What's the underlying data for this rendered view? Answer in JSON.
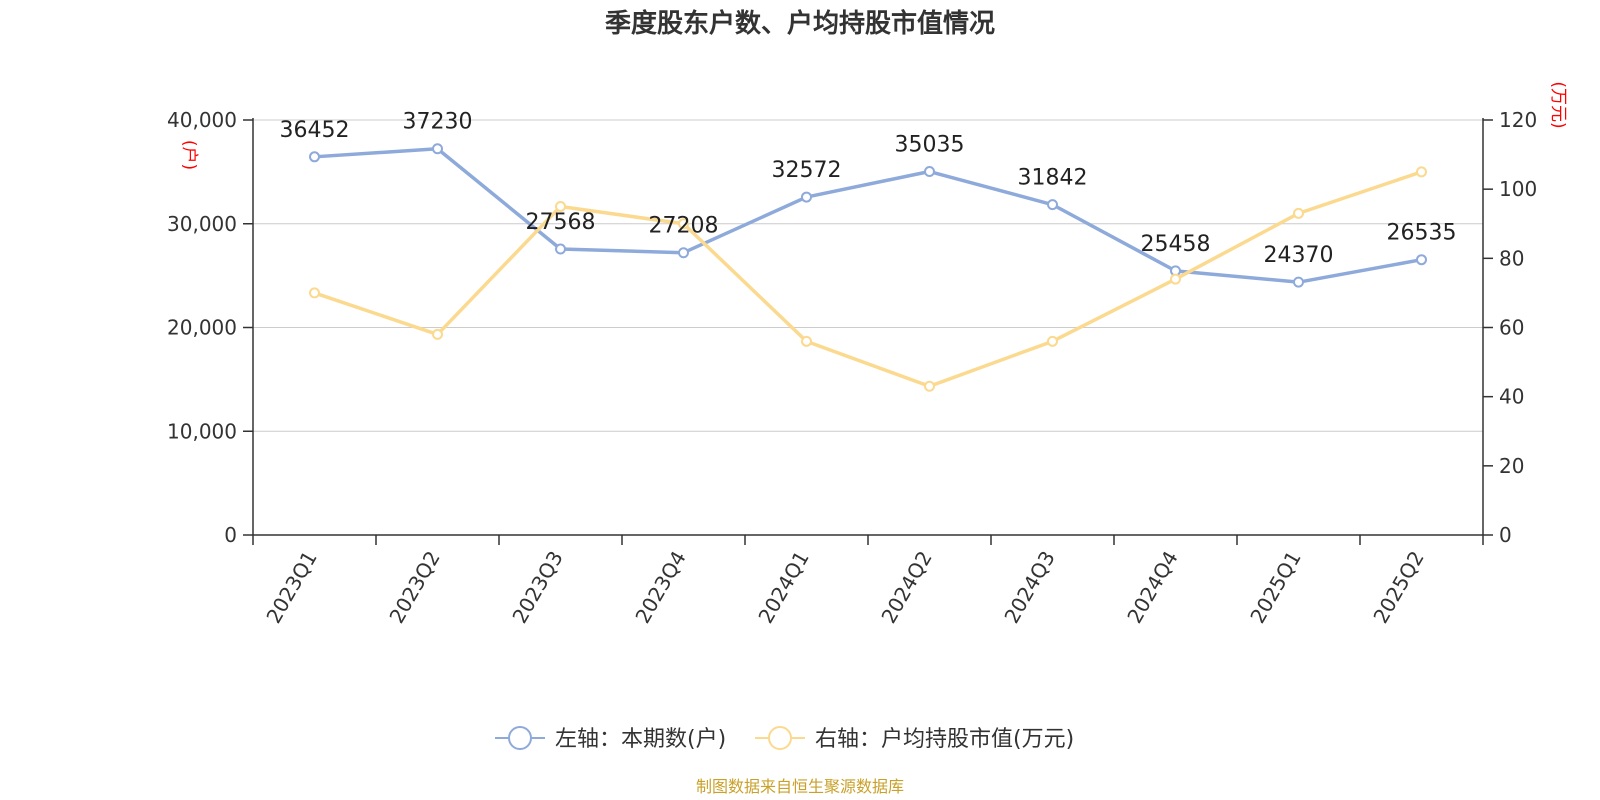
{
  "chart_data": {
    "type": "line",
    "title": "季度股东户数、户均持股市值情况",
    "categories": [
      "2023Q1",
      "2023Q2",
      "2023Q3",
      "2023Q4",
      "2024Q1",
      "2024Q2",
      "2024Q3",
      "2024Q4",
      "2025Q1",
      "2025Q2"
    ],
    "left_axis": {
      "unit": "(户)",
      "ylim": [
        0,
        40000
      ],
      "ticks": [
        "0",
        "10,000",
        "20,000",
        "30,000",
        "40,000"
      ],
      "tick_values": [
        0,
        10000,
        20000,
        30000,
        40000
      ]
    },
    "right_axis": {
      "unit": "(万元)",
      "ylim": [
        0,
        120
      ],
      "ticks": [
        "0",
        "20",
        "40",
        "60",
        "80",
        "100",
        "120"
      ],
      "tick_values": [
        0,
        20,
        40,
        60,
        80,
        100,
        120
      ]
    },
    "series": [
      {
        "name": "左轴：本期数(户)",
        "axis": "left",
        "color": "#8eaadb",
        "values": [
          36452,
          37230,
          27568,
          27208,
          32572,
          35035,
          31842,
          25458,
          24370,
          26535
        ],
        "labels": [
          "36452",
          "37230",
          "27568",
          "27208",
          "32572",
          "35035",
          "31842",
          "25458",
          "24370",
          "26535"
        ]
      },
      {
        "name": "右轴：户均持股市值(万元)",
        "axis": "right",
        "color": "#fbd98f",
        "values": [
          70,
          58,
          95,
          90,
          56,
          43,
          56,
          74,
          93,
          105
        ]
      }
    ],
    "grid": true,
    "legend_position": "bottom-center",
    "source": "制图数据来自恒生聚源数据库"
  }
}
